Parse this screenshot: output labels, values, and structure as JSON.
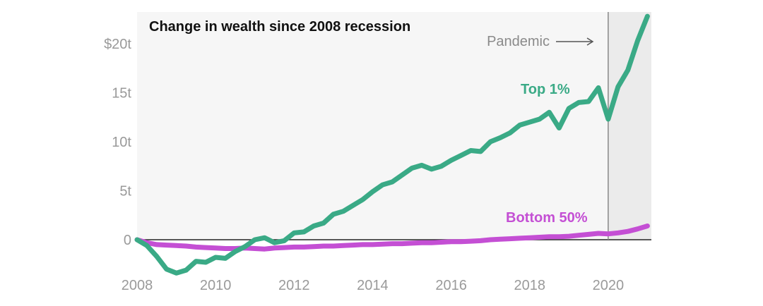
{
  "chart_data": {
    "type": "line",
    "title": "Change in wealth since 2008 recession",
    "xlabel": "",
    "ylabel": "",
    "xlim": [
      2008,
      2021.1
    ],
    "ylim": [
      -3.5,
      23
    ],
    "x_ticks": [
      2008,
      2010,
      2012,
      2014,
      2016,
      2018,
      2020
    ],
    "x_tick_labels": [
      "2008",
      "2010",
      "2012",
      "2014",
      "2016",
      "2018",
      "2020"
    ],
    "y_ticks": [
      0,
      5,
      10,
      15,
      20
    ],
    "y_tick_labels": [
      "0",
      "5t",
      "10t",
      "15t",
      "$20t"
    ],
    "grid": false,
    "annotation": {
      "label": "Pandemic",
      "x": 2020
    },
    "series": [
      {
        "name": "Top 1%",
        "color": "#3aaa86",
        "x": [
          2008,
          2008.25,
          2008.5,
          2008.75,
          2009,
          2009.25,
          2009.5,
          2009.75,
          2010,
          2010.25,
          2010.5,
          2010.75,
          2011,
          2011.25,
          2011.5,
          2011.75,
          2012,
          2012.25,
          2012.5,
          2012.75,
          2013,
          2013.25,
          2013.5,
          2013.75,
          2014,
          2014.25,
          2014.5,
          2014.75,
          2015,
          2015.25,
          2015.5,
          2015.75,
          2016,
          2016.25,
          2016.5,
          2016.75,
          2017,
          2017.25,
          2017.5,
          2017.75,
          2018,
          2018.25,
          2018.5,
          2018.75,
          2019,
          2019.25,
          2019.5,
          2019.75,
          2020,
          2020.25,
          2020.5,
          2020.75,
          2021
        ],
        "values": [
          0,
          -0.6,
          -1.7,
          -3.0,
          -3.4,
          -3.1,
          -2.2,
          -2.3,
          -1.8,
          -1.9,
          -1.2,
          -0.7,
          0.0,
          0.2,
          -0.3,
          -0.1,
          0.7,
          0.8,
          1.4,
          1.7,
          2.6,
          2.9,
          3.5,
          4.1,
          4.9,
          5.6,
          5.9,
          6.6,
          7.3,
          7.6,
          7.2,
          7.5,
          8.1,
          8.6,
          9.1,
          9.0,
          10.0,
          10.4,
          10.9,
          11.7,
          12.0,
          12.3,
          13.0,
          11.4,
          13.4,
          14.0,
          14.1,
          15.5,
          12.3,
          15.6,
          17.3,
          20.3,
          22.8
        ]
      },
      {
        "name": "Bottom 50%",
        "color": "#c44fd4",
        "x": [
          2008,
          2008.25,
          2008.5,
          2008.75,
          2009,
          2009.25,
          2009.5,
          2009.75,
          2010,
          2010.25,
          2010.5,
          2010.75,
          2011,
          2011.25,
          2011.5,
          2011.75,
          2012,
          2012.25,
          2012.5,
          2012.75,
          2013,
          2013.25,
          2013.5,
          2013.75,
          2014,
          2014.25,
          2014.5,
          2014.75,
          2015,
          2015.25,
          2015.5,
          2015.75,
          2016,
          2016.25,
          2016.5,
          2016.75,
          2017,
          2017.25,
          2017.5,
          2017.75,
          2018,
          2018.25,
          2018.5,
          2018.75,
          2019,
          2019.25,
          2019.5,
          2019.75,
          2020,
          2020.25,
          2020.5,
          2020.75,
          2021
        ],
        "values": [
          0,
          -0.3,
          -0.5,
          -0.55,
          -0.6,
          -0.65,
          -0.75,
          -0.8,
          -0.85,
          -0.9,
          -0.9,
          -0.85,
          -0.9,
          -0.95,
          -0.85,
          -0.8,
          -0.75,
          -0.75,
          -0.7,
          -0.65,
          -0.65,
          -0.6,
          -0.55,
          -0.5,
          -0.5,
          -0.45,
          -0.4,
          -0.4,
          -0.35,
          -0.3,
          -0.3,
          -0.25,
          -0.2,
          -0.2,
          -0.15,
          -0.1,
          0.0,
          0.05,
          0.1,
          0.15,
          0.2,
          0.25,
          0.3,
          0.3,
          0.35,
          0.45,
          0.55,
          0.65,
          0.6,
          0.7,
          0.85,
          1.1,
          1.4
        ]
      }
    ],
    "background_colors": {
      "plot": "#f6f6f6",
      "pandemic_region": "#ebebeb"
    }
  }
}
